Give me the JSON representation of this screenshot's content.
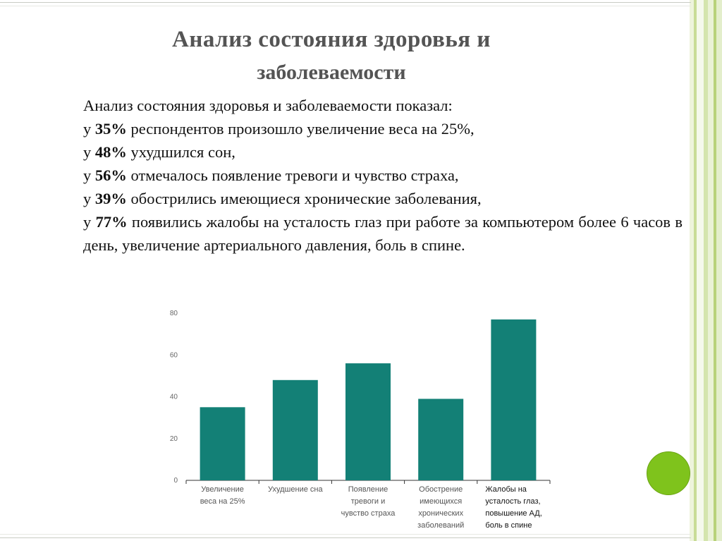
{
  "title": {
    "line1": "Анализ состояния здоровья и",
    "line2": "заболеваемости"
  },
  "intro": "Анализ состояния здоровья и заболеваемости показал:",
  "findings": [
    {
      "prefix": "у ",
      "percent": "35%",
      "text": " респондентов произошло увеличение веса на 25%,"
    },
    {
      "prefix": "у ",
      "percent": "48%",
      "text": " ухудшился сон,"
    },
    {
      "prefix": "у ",
      "percent": "56%",
      "text": " отмечалось появление тревоги и чувство страха,"
    },
    {
      "prefix": "у ",
      "percent": "39%",
      "text": " обострились имеющиеся хронические заболевания,"
    },
    {
      "prefix": "у ",
      "percent": "77%",
      "text": " появились жалобы на усталость глаз при работе за компьютером более 6 часов в день, увеличение артериального давления, боль в спине."
    }
  ],
  "colors": {
    "bar": "#138076",
    "accent_green": "#7fc31c",
    "title": "#545454",
    "stripes": [
      "#e8f0d2",
      "#cfe0a3",
      "#f4f8ea",
      "#b9d37a"
    ]
  },
  "chart_data": {
    "type": "bar",
    "categories": [
      [
        "Увеличение",
        "веса на 25%"
      ],
      [
        "Ухудшение сна"
      ],
      [
        "Появление",
        "тревоги и",
        "чувство страха"
      ],
      [
        "Обострение",
        "имеющихся",
        "хронических",
        "заболеваний"
      ],
      [
        "Жалобы на",
        "усталость глаз,",
        "повышение АД,",
        "боль в спине"
      ]
    ],
    "values": [
      35,
      48,
      56,
      39,
      77
    ],
    "ylim": [
      0,
      80
    ],
    "yticks": [
      0,
      20,
      40,
      60,
      80
    ],
    "grid": false,
    "title": "",
    "xlabel": "",
    "ylabel": ""
  }
}
